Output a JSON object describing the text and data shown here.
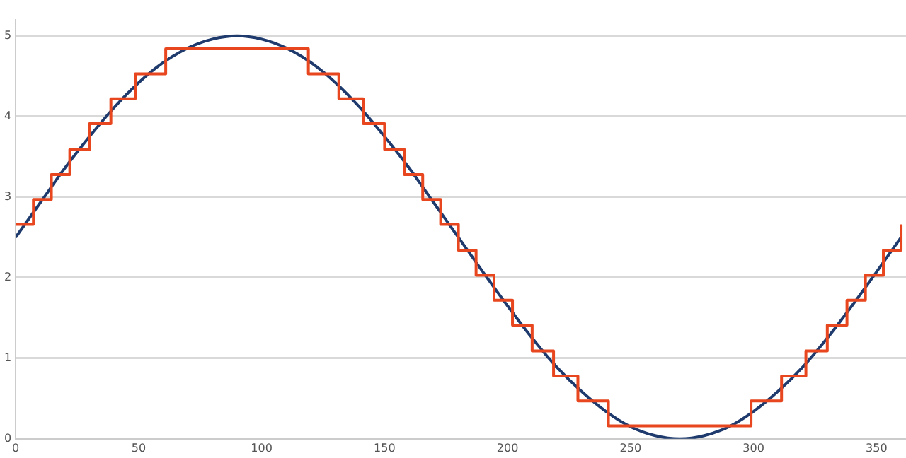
{
  "chart_data": {
    "type": "line",
    "xlim": [
      0,
      362
    ],
    "xticks": [
      0,
      50,
      100,
      150,
      200,
      250,
      300,
      350
    ],
    "ylim": [
      0,
      5.2
    ],
    "yticks": [
      0,
      1,
      2,
      3,
      4,
      5
    ],
    "grid": "y",
    "marker": "none",
    "series": [
      {
        "type": "step",
        "color": "#e8461e",
        "x": [
          0,
          7.2,
          14.5,
          22,
          30,
          38.7,
          48.6,
          61,
          119,
          131.4,
          141.3,
          150,
          158,
          165.5,
          172.8,
          180,
          187.2,
          194.5,
          202,
          210,
          218.7,
          228.6,
          241,
          299,
          311.4,
          321.3,
          330,
          338,
          345.5,
          352.8,
          360
        ],
        "values": [
          2.66,
          2.97,
          3.28,
          3.59,
          3.91,
          4.22,
          4.53,
          4.84,
          4.53,
          4.22,
          3.91,
          3.59,
          3.28,
          2.97,
          2.66,
          2.34,
          2.03,
          1.72,
          1.41,
          1.09,
          0.78,
          0.47,
          0.16,
          0.47,
          0.78,
          1.09,
          1.41,
          1.72,
          2.03,
          2.34,
          2.66
        ]
      },
      {
        "type": "line",
        "color": "#1f3b6e",
        "x": [
          0,
          10,
          20,
          30,
          40,
          50,
          60,
          70,
          80,
          90,
          100,
          110,
          120,
          130,
          140,
          150,
          160,
          170,
          180,
          190,
          200,
          210,
          220,
          230,
          240,
          250,
          260,
          270,
          280,
          290,
          300,
          310,
          320,
          330,
          340,
          350,
          360
        ],
        "values": [
          2.5,
          2.93,
          3.36,
          3.75,
          4.11,
          4.42,
          4.67,
          4.85,
          4.96,
          5,
          4.96,
          4.85,
          4.67,
          4.42,
          4.11,
          3.75,
          3.36,
          2.93,
          2.5,
          2.07,
          1.65,
          1.25,
          0.89,
          0.59,
          0.34,
          0.15,
          0.04,
          0,
          0.04,
          0.15,
          0.34,
          0.59,
          0.89,
          1.25,
          1.65,
          2.07,
          2.5
        ]
      }
    ]
  }
}
